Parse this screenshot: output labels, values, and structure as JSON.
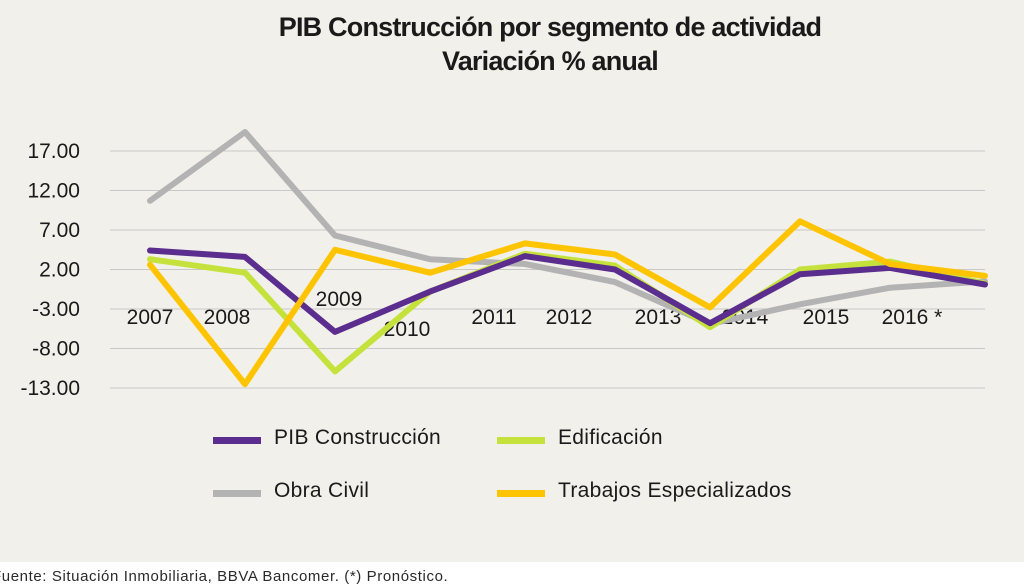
{
  "chart_data": {
    "type": "line",
    "title": "PIB Construcción por segmento de actividad",
    "subtitle": "Variación % anual",
    "categories": [
      "2007",
      "2008",
      "2009",
      "2010",
      "2011",
      "2012",
      "2013",
      "2014",
      "2015",
      "2016 *"
    ],
    "y_ticks": [
      "17.00",
      "12.00",
      "7.00",
      "2.00",
      "-3.00",
      "-8.00",
      "-13.00"
    ],
    "ylim": [
      -13,
      17
    ],
    "grid": true,
    "legend_position": "bottom",
    "series": [
      {
        "name": "PIB Construcción",
        "color": "#5b2d8e",
        "values": [
          4.4,
          3.6,
          -5.9,
          -0.8,
          3.7,
          2.0,
          -4.8,
          1.4,
          2.2,
          0.1
        ]
      },
      {
        "name": "Edificación",
        "color": "#c5e23c",
        "values": [
          3.3,
          1.6,
          -10.9,
          -0.8,
          4.0,
          2.5,
          -5.3,
          2.0,
          3.0,
          0.2
        ]
      },
      {
        "name": "Obra Civil",
        "color": "#b3b3b3",
        "values": [
          10.7,
          19.4,
          6.3,
          3.3,
          2.7,
          0.4,
          -4.9,
          -2.4,
          -0.3,
          0.5
        ]
      },
      {
        "name": "Trabajos Especializados",
        "color": "#ffc400",
        "values": [
          2.6,
          -12.5,
          4.5,
          1.6,
          5.3,
          3.9,
          -2.8,
          8.1,
          2.7,
          1.2
        ]
      }
    ]
  },
  "legend": {
    "items": [
      {
        "label": "PIB Construcción",
        "color": "#5b2d8e"
      },
      {
        "label": "Edificación",
        "color": "#c5e23c"
      },
      {
        "label": "Obra Civil",
        "color": "#b3b3b3"
      },
      {
        "label": "Trabajos Especializados",
        "color": "#ffc400"
      }
    ]
  },
  "footer": {
    "source": "Fuente: Situación Inmobiliaria, BBVA Bancomer. (*) Pronóstico."
  }
}
